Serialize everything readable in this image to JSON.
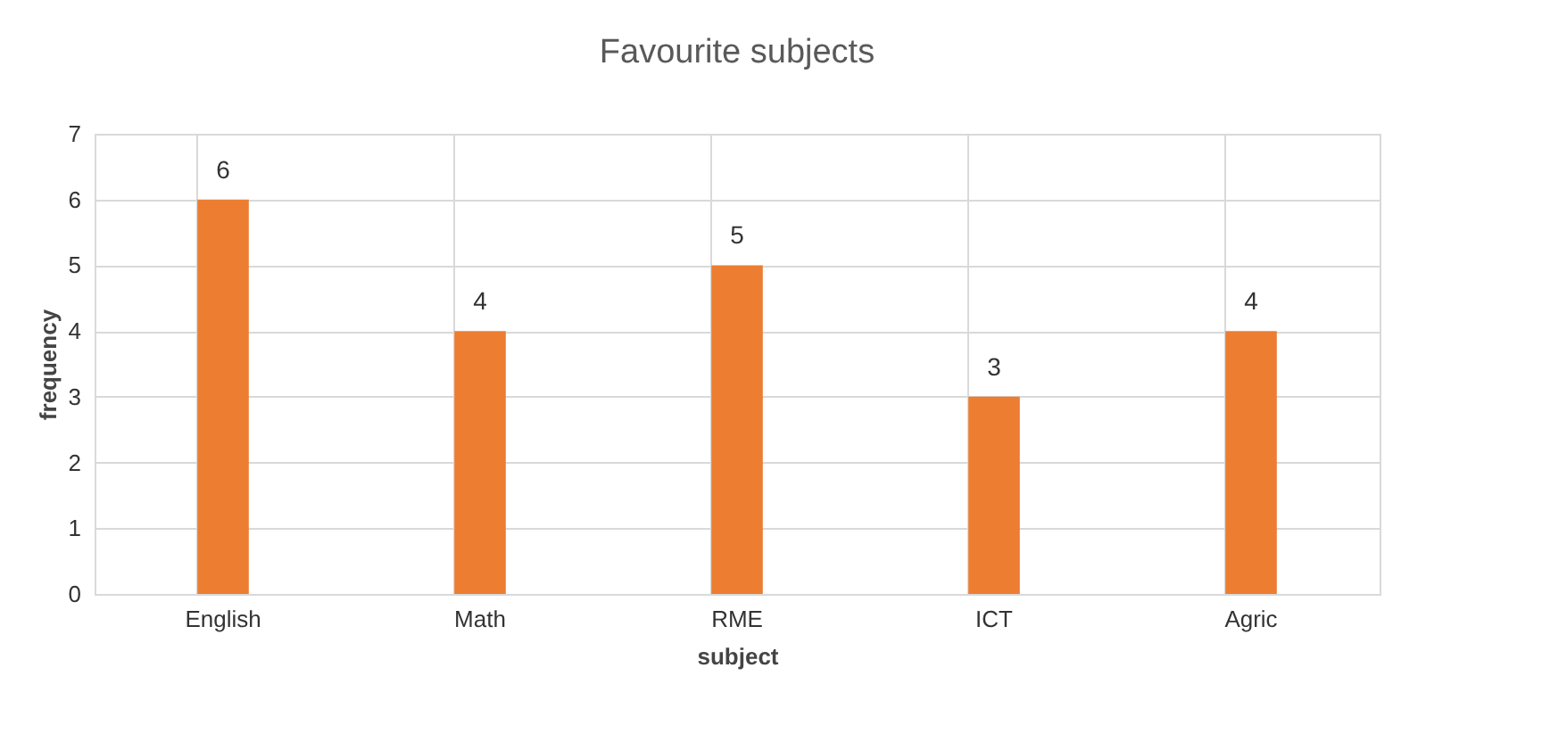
{
  "chart_data": {
    "type": "bar",
    "title": "Favourite subjects",
    "xlabel": "subject",
    "ylabel": "frequency",
    "categories": [
      "English",
      "Math",
      "RME",
      "ICT",
      "Agric"
    ],
    "values": [
      6,
      4,
      5,
      3,
      4
    ],
    "color": "#ed7d31",
    "ylim": [
      0,
      7
    ],
    "yticks": [
      0,
      1,
      2,
      3,
      4,
      5,
      6,
      7
    ],
    "grid": true,
    "data_labels": true
  }
}
